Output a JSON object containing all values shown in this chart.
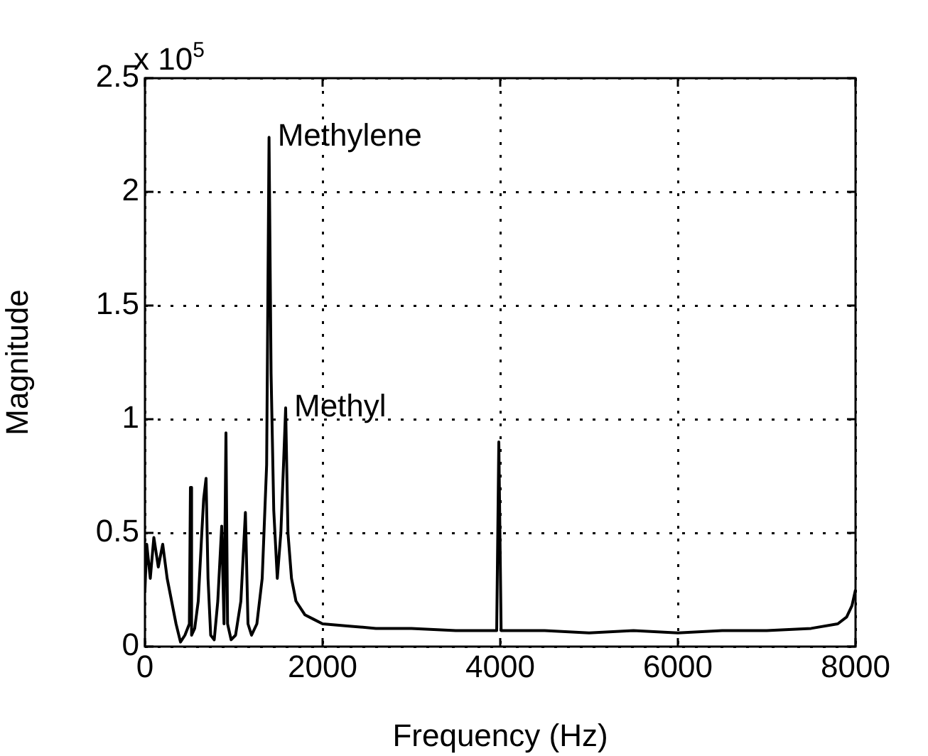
{
  "chart_data": {
    "type": "line",
    "xlabel": "Frequency (Hz)",
    "ylabel": "Magnitude",
    "annotations": [
      "x 10$^{5}$",
      {
        "text": "Methylene",
        "x": 1397,
        "y": 2.24
      },
      {
        "text": "Methyl",
        "x": 1584,
        "y": 1.05
      }
    ],
    "xlim": [
      0,
      8000
    ],
    "xticks": [
      0,
      2000,
      4000,
      6000,
      8000
    ],
    "ylim": [
      0,
      2.5
    ],
    "yticks": [
      0,
      0.5,
      1,
      1.5,
      2,
      2.5
    ],
    "grid": true,
    "marker": "none",
    "line_style": "solid",
    "series": [
      {
        "color": "#000000",
        "x": [
          0,
          20,
          60,
          100,
          150,
          200,
          250,
          300,
          350,
          400,
          450,
          500,
          512,
          525,
          560,
          600,
          640,
          661,
          688,
          710,
          740,
          780,
          820,
          864,
          890,
          912,
          930,
          970,
          1020,
          1080,
          1131,
          1160,
          1200,
          1260,
          1320,
          1370,
          1397,
          1420,
          1450,
          1490,
          1530,
          1560,
          1584,
          1610,
          1650,
          1700,
          1800,
          1900,
          2000,
          2300,
          2600,
          3000,
          3500,
          3960,
          3984,
          4010,
          4500,
          5000,
          5500,
          6000,
          6500,
          7000,
          7500,
          7800,
          7900,
          7960,
          8000
        ],
        "values": [
          0.25,
          0.45,
          0.3,
          0.48,
          0.35,
          0.45,
          0.3,
          0.2,
          0.1,
          0.02,
          0.05,
          0.1,
          0.7,
          0.05,
          0.08,
          0.2,
          0.5,
          0.65,
          0.74,
          0.3,
          0.05,
          0.03,
          0.2,
          0.53,
          0.1,
          0.94,
          0.1,
          0.03,
          0.05,
          0.2,
          0.59,
          0.1,
          0.05,
          0.1,
          0.3,
          0.8,
          2.24,
          1.2,
          0.6,
          0.3,
          0.5,
          0.8,
          1.05,
          0.5,
          0.3,
          0.2,
          0.14,
          0.12,
          0.1,
          0.09,
          0.08,
          0.08,
          0.07,
          0.07,
          0.9,
          0.07,
          0.07,
          0.06,
          0.07,
          0.06,
          0.07,
          0.07,
          0.08,
          0.1,
          0.13,
          0.18,
          0.25
        ]
      }
    ]
  }
}
